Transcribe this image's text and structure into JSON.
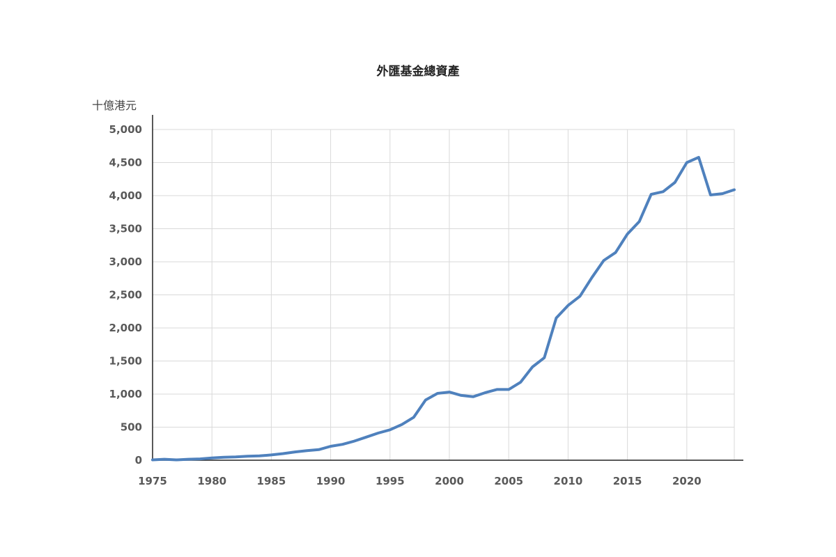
{
  "chart_data": {
    "type": "line",
    "title": "外匯基金總資產",
    "ylabel": "十億港元",
    "xlabel": "",
    "xlim": [
      1975,
      2024
    ],
    "ylim": [
      0,
      5000
    ],
    "x_ticks": [
      1975,
      1980,
      1985,
      1990,
      1995,
      2000,
      2005,
      2010,
      2015,
      2020
    ],
    "x_tick_labels": [
      "1975",
      "1980",
      "1985",
      "1990",
      "1995",
      "2000",
      "2005",
      "2010",
      "2015",
      "2020"
    ],
    "y_ticks": [
      0,
      500,
      1000,
      1500,
      2000,
      2500,
      3000,
      3500,
      4000,
      4500,
      5000
    ],
    "y_tick_labels": [
      "0",
      "500",
      "1,000",
      "1,500",
      "2,000",
      "2,500",
      "3,000",
      "3,500",
      "4,000",
      "4,500",
      "5,000"
    ],
    "grid": true,
    "legend": "none",
    "series": [
      {
        "color": "#4f81bd",
        "x": [
          1975,
          1976,
          1977,
          1978,
          1979,
          1980,
          1981,
          1982,
          1983,
          1984,
          1985,
          1986,
          1987,
          1988,
          1989,
          1990,
          1991,
          1992,
          1993,
          1994,
          1995,
          1996,
          1997,
          1998,
          1999,
          2000,
          2001,
          2002,
          2003,
          2004,
          2005,
          2006,
          2007,
          2008,
          2009,
          2010,
          2011,
          2012,
          2013,
          2014,
          2015,
          2016,
          2017,
          2018,
          2019,
          2020,
          2021,
          2022,
          2023,
          2024
        ],
        "values": [
          5,
          15,
          5,
          15,
          20,
          35,
          45,
          50,
          60,
          65,
          80,
          100,
          125,
          145,
          160,
          210,
          240,
          290,
          350,
          410,
          460,
          540,
          650,
          910,
          1010,
          1030,
          980,
          960,
          1020,
          1070,
          1070,
          1180,
          1410,
          1550,
          2150,
          2340,
          2480,
          2760,
          3020,
          3140,
          3420,
          3610,
          4020,
          4060,
          4200,
          4500,
          4580,
          4010,
          4030,
          4090
        ]
      }
    ]
  }
}
